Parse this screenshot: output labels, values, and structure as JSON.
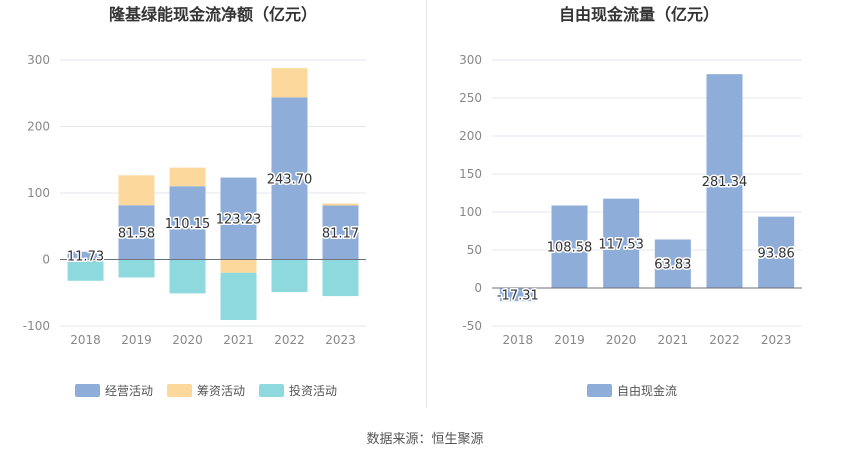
{
  "source_label": "数据来源：恒生聚源",
  "chart_data": [
    {
      "type": "bar",
      "stacked": true,
      "title": "隆基绿能现金流净额（亿元）",
      "categories": [
        "2018",
        "2019",
        "2020",
        "2021",
        "2022",
        "2023"
      ],
      "ylim": [
        -100,
        300
      ],
      "yticks": [
        -100,
        0,
        100,
        200,
        300
      ],
      "legend_position": "bottom",
      "grid": true,
      "series": [
        {
          "name": "经营活动",
          "color": "#8eadd9",
          "values": [
            11.73,
            81.58,
            110.15,
            123.23,
            243.7,
            81.17
          ],
          "labels": [
            "11.73",
            "81.58",
            "110.15",
            "123.23",
            "243.70",
            "81.17"
          ]
        },
        {
          "name": "筹资活动",
          "color": "#fcd89d",
          "values": [
            -2,
            45,
            28,
            -20,
            44,
            3
          ]
        },
        {
          "name": "投资活动",
          "color": "#8dd9dd",
          "values": [
            -30,
            -27,
            -51,
            -71,
            -49,
            -55
          ]
        }
      ]
    },
    {
      "type": "bar",
      "title": "自由现金流量（亿元）",
      "categories": [
        "2018",
        "2019",
        "2020",
        "2021",
        "2022",
        "2023"
      ],
      "ylim": [
        -50,
        300
      ],
      "yticks": [
        -50,
        0,
        50,
        100,
        150,
        200,
        250,
        300
      ],
      "legend_position": "bottom",
      "grid": true,
      "series": [
        {
          "name": "自由现金流",
          "color": "#8eadd9",
          "values": [
            -17.31,
            108.58,
            117.53,
            63.83,
            281.34,
            93.86
          ],
          "labels": [
            "-17.31",
            "108.58",
            "117.53",
            "63.83",
            "281.34",
            "93.86"
          ]
        }
      ]
    }
  ]
}
